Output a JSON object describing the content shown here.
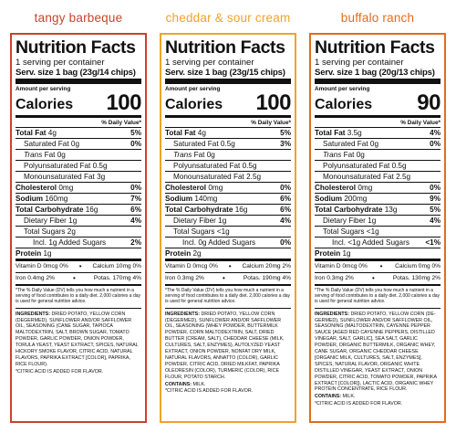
{
  "colors": {
    "tangy_barbeque": "#c9432c",
    "cheddar_sour_cream": "#f0a32a",
    "buffalo_ranch": "#e56a1c"
  },
  "labels": [
    {
      "flavor": "tangy barbeque",
      "title": "Nutrition Facts",
      "servings": "1 serving per container",
      "serving_label": "Serv. size",
      "serving_size": "1 bag (23g/14 chips)",
      "amount_per_serving": "Amount per serving",
      "calories_label": "Calories",
      "calories": "100",
      "dv_header": "% Daily Value*",
      "total_fat": {
        "label": "Total Fat",
        "value": "4g",
        "dv": "5%"
      },
      "saturated_fat": {
        "label": "Saturated Fat",
        "value": "0g",
        "dv": "0%"
      },
      "trans_fat": {
        "label": "Trans",
        "label2": "Fat",
        "value": "0g"
      },
      "poly_fat": {
        "label": "Polyunsaturated Fat",
        "value": "0.5g"
      },
      "mono_fat": {
        "label": "Monounsaturated Fat",
        "value": "3g"
      },
      "cholesterol": {
        "label": "Cholesterol",
        "value": "0mg",
        "dv": "0%"
      },
      "sodium": {
        "label": "Sodium",
        "value": "160mg",
        "dv": "7%"
      },
      "total_carb": {
        "label": "Total Carbohydrate",
        "value": "16g",
        "dv": "6%"
      },
      "fiber": {
        "label": "Dietary Fiber",
        "value": "1g",
        "dv": "4%"
      },
      "total_sugars": {
        "label": "Total Sugars",
        "value": "2g"
      },
      "added_sugars": {
        "label": "Incl.",
        "value": "1g",
        "label2": "Added Sugars",
        "dv": "2%"
      },
      "protein": {
        "label": "Protein",
        "value": "1g"
      },
      "vitd": {
        "label": "Vitamin D",
        "value": "0mcg",
        "dv": "0%"
      },
      "calcium": {
        "label": "Calcium",
        "value": "10mg",
        "dv": "0%"
      },
      "iron": {
        "label": "Iron",
        "value": "0.4mg",
        "dv": "2%"
      },
      "potas": {
        "label": "Potas.",
        "value": "170mg",
        "dv": "4%"
      },
      "footnote": "*The % Daily Value (DV) tells you how much a nutrient in a serving of food contributes to a daily diet. 2,000 calories a day is used for general nutrition advice.",
      "ingredients_label": "Ingredients:",
      "ingredients": "Dried potato, yellow corn (degermed), sunflower and/or safflower oil, seasoning (cane sugar, tapioca maltodextrin, salt, brown sugar, tomato powder, garlic powder, onion powder, torula yeast, yeast extract, spices, natural hickory smoke flavor, citric acid, natural flavors, paprika extract [color], paprika, rice flour).",
      "contains_label": "",
      "contains": "",
      "citric_note": "*Citric acid is added for flavor."
    },
    {
      "flavor": "cheddar & sour cream",
      "title": "Nutrition Facts",
      "servings": "1 serving per container",
      "serving_label": "Serv. size",
      "serving_size": "1 bag (23g/15 chips)",
      "amount_per_serving": "Amount per serving",
      "calories_label": "Calories",
      "calories": "100",
      "dv_header": "% Daily Value*",
      "total_fat": {
        "label": "Total Fat",
        "value": "4g",
        "dv": "5%"
      },
      "saturated_fat": {
        "label": "Saturated Fat",
        "value": "0.5g",
        "dv": "3%"
      },
      "trans_fat": {
        "label": "Trans",
        "label2": "Fat",
        "value": "0g"
      },
      "poly_fat": {
        "label": "Polyunsaturated Fat",
        "value": "0.5g"
      },
      "mono_fat": {
        "label": "Monounsaturated Fat",
        "value": "2.5g"
      },
      "cholesterol": {
        "label": "Cholesterol",
        "value": "0mg",
        "dv": "0%"
      },
      "sodium": {
        "label": "Sodium",
        "value": "140mg",
        "dv": "6%"
      },
      "total_carb": {
        "label": "Total Carbohydrate",
        "value": "16g",
        "dv": "6%"
      },
      "fiber": {
        "label": "Dietary Fiber",
        "value": "1g",
        "dv": "4%"
      },
      "total_sugars": {
        "label": "Total Sugars",
        "value": "<1g"
      },
      "added_sugars": {
        "label": "Incl.",
        "value": "0g",
        "label2": "Added Sugars",
        "dv": "0%"
      },
      "protein": {
        "label": "Protein",
        "value": "2g"
      },
      "vitd": {
        "label": "Vitamin D",
        "value": "0mcg",
        "dv": "0%"
      },
      "calcium": {
        "label": "Calcium",
        "value": "20mg",
        "dv": "2%"
      },
      "iron": {
        "label": "Iron",
        "value": "0.3mg",
        "dv": "2%"
      },
      "potas": {
        "label": "Potas.",
        "value": "190mg",
        "dv": "4%"
      },
      "footnote": "*The % Daily Value (DV) tells you how much a nutrient in a serving of food contributes to a daily diet. 2,000 calories a day is used for general nutrition advice.",
      "ingredients_label": "Ingredients:",
      "ingredients": "Dried potato, yellow corn (degermed), sunflower and/or safflower oil, seasoning (whey powder, buttermilk powder, corn maltodextrin, salt, dried butter (cream, salt), cheddar cheese (milk, cultures, salt, enzymes), autolyzed yeast extract, onion powder, nonfat dry milk, natural flavors, annatto (color), garlic powder, citric acid, dried milkfat, paprika oleoresin (color), turmeric (color), rice flour, potato starch.",
      "contains_label": "Contains:",
      "contains": "Milk.",
      "citric_note": "*Citric acid is added for flavor."
    },
    {
      "flavor": "buffalo ranch",
      "title": "Nutrition Facts",
      "servings": "1 serving per container",
      "serving_label": "Serv. size",
      "serving_size": "1 bag (20g/13 chips)",
      "amount_per_serving": "Amount per serving",
      "calories_label": "Calories",
      "calories": "90",
      "dv_header": "% Daily Value*",
      "total_fat": {
        "label": "Total Fat",
        "value": "3.5g",
        "dv": "4%"
      },
      "saturated_fat": {
        "label": "Saturated Fat",
        "value": "0g",
        "dv": "0%"
      },
      "trans_fat": {
        "label": "Trans",
        "label2": "Fat",
        "value": "0g"
      },
      "poly_fat": {
        "label": "Polyunsaturated Fat",
        "value": "0.5g"
      },
      "mono_fat": {
        "label": "Monounsaturated Fat",
        "value": "2.5g"
      },
      "cholesterol": {
        "label": "Cholesterol",
        "value": "0mg",
        "dv": "0%"
      },
      "sodium": {
        "label": "Sodium",
        "value": "200mg",
        "dv": "9%"
      },
      "total_carb": {
        "label": "Total Carbohydrate",
        "value": "13g",
        "dv": "5%"
      },
      "fiber": {
        "label": "Dietary Fiber",
        "value": "1g",
        "dv": "4%"
      },
      "total_sugars": {
        "label": "Total Sugars",
        "value": "<1g"
      },
      "added_sugars": {
        "label": "Incl.",
        "value": "<1g",
        "label2": "Added Sugars",
        "dv": "<1%"
      },
      "protein": {
        "label": "Protein",
        "value": "1g"
      },
      "vitd": {
        "label": "Vitamin D",
        "value": "0mcg",
        "dv": "0%"
      },
      "calcium": {
        "label": "Calcium",
        "value": "0mg",
        "dv": "0%"
      },
      "iron": {
        "label": "Iron",
        "value": "0.3mg",
        "dv": "2%"
      },
      "potas": {
        "label": "Potas.",
        "value": "130mg",
        "dv": "2%"
      },
      "footnote": "*The % Daily Value (DV) tells you how much a nutrient in a serving of food contributes to a daily diet. 2,000 calories a day is used for general nutrition advice.",
      "ingredients_label": "Ingredients:",
      "ingredients": "Dried potato, yellow corn (de-germed), sunflower and/or safflower oil, seasoning (maltodextrin, cayenne pepper sauce [aged red cayenne peppers, distilled vinegar, salt, garlic], sea salt, garlic powder, organic buttermilk, organic whey, cane sugar, organic cheddar cheese [organic milk, cultures, salt, enzymes], spices, natural flavor, organic white distilled vinegar, yeast extract, onion powder, citric acid, tomato powder, paprika extract [color]), lactic acid, organic whey protein concentrate, rice flour.",
      "contains_label": "Contains:",
      "contains": "Milk.",
      "citric_note": "*Citric acid is added for flavor."
    }
  ]
}
